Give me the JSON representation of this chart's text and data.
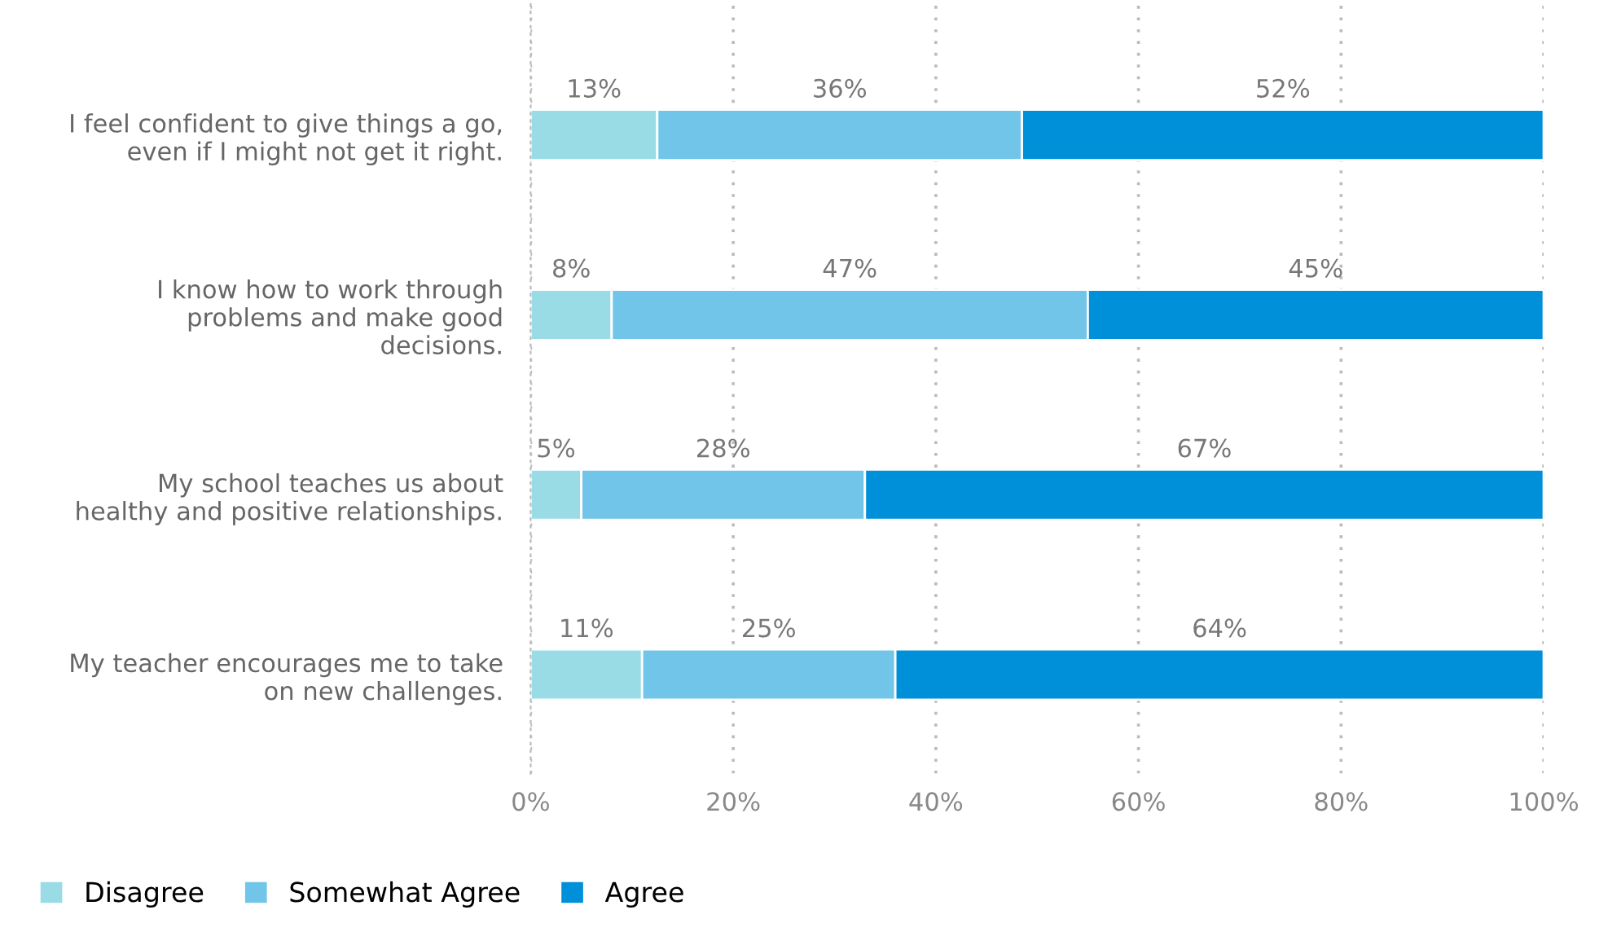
{
  "chart_data": {
    "type": "bar",
    "orientation": "horizontal",
    "stacked": true,
    "categories": [
      "I feel confident to give things a go,\neven if I might not get it right.",
      "I know how to work through\nproblems and make good\ndecisions.",
      "My school teaches us about\nhealthy and positive relationships.",
      "My teacher encourages me to take\non new challenges."
    ],
    "series": [
      {
        "name": "Disagree",
        "color": "#99dce6",
        "values": [
          12.5,
          8,
          5,
          11
        ],
        "value_labels": [
          "13%",
          "8%",
          "5%",
          "11%"
        ]
      },
      {
        "name": "Somewhat Agree",
        "color": "#71c5e8",
        "values": [
          36,
          47,
          28,
          25
        ],
        "value_labels": [
          "36%",
          "47%",
          "28%",
          "25%"
        ]
      },
      {
        "name": "Agree",
        "color": "#008fd9",
        "values": [
          51.5,
          45,
          67,
          64
        ],
        "value_labels": [
          "52%",
          "45%",
          "67%",
          "64%"
        ]
      }
    ],
    "xlim": [
      0,
      100
    ],
    "xticks": [
      {
        "value": 0,
        "label": "0%"
      },
      {
        "value": 20,
        "label": "20%"
      },
      {
        "value": 40,
        "label": "40%"
      },
      {
        "value": 60,
        "label": "60%"
      },
      {
        "value": 80,
        "label": "80%"
      },
      {
        "value": 100,
        "label": "100%"
      }
    ],
    "grid": "x",
    "legend": "bottom left"
  }
}
